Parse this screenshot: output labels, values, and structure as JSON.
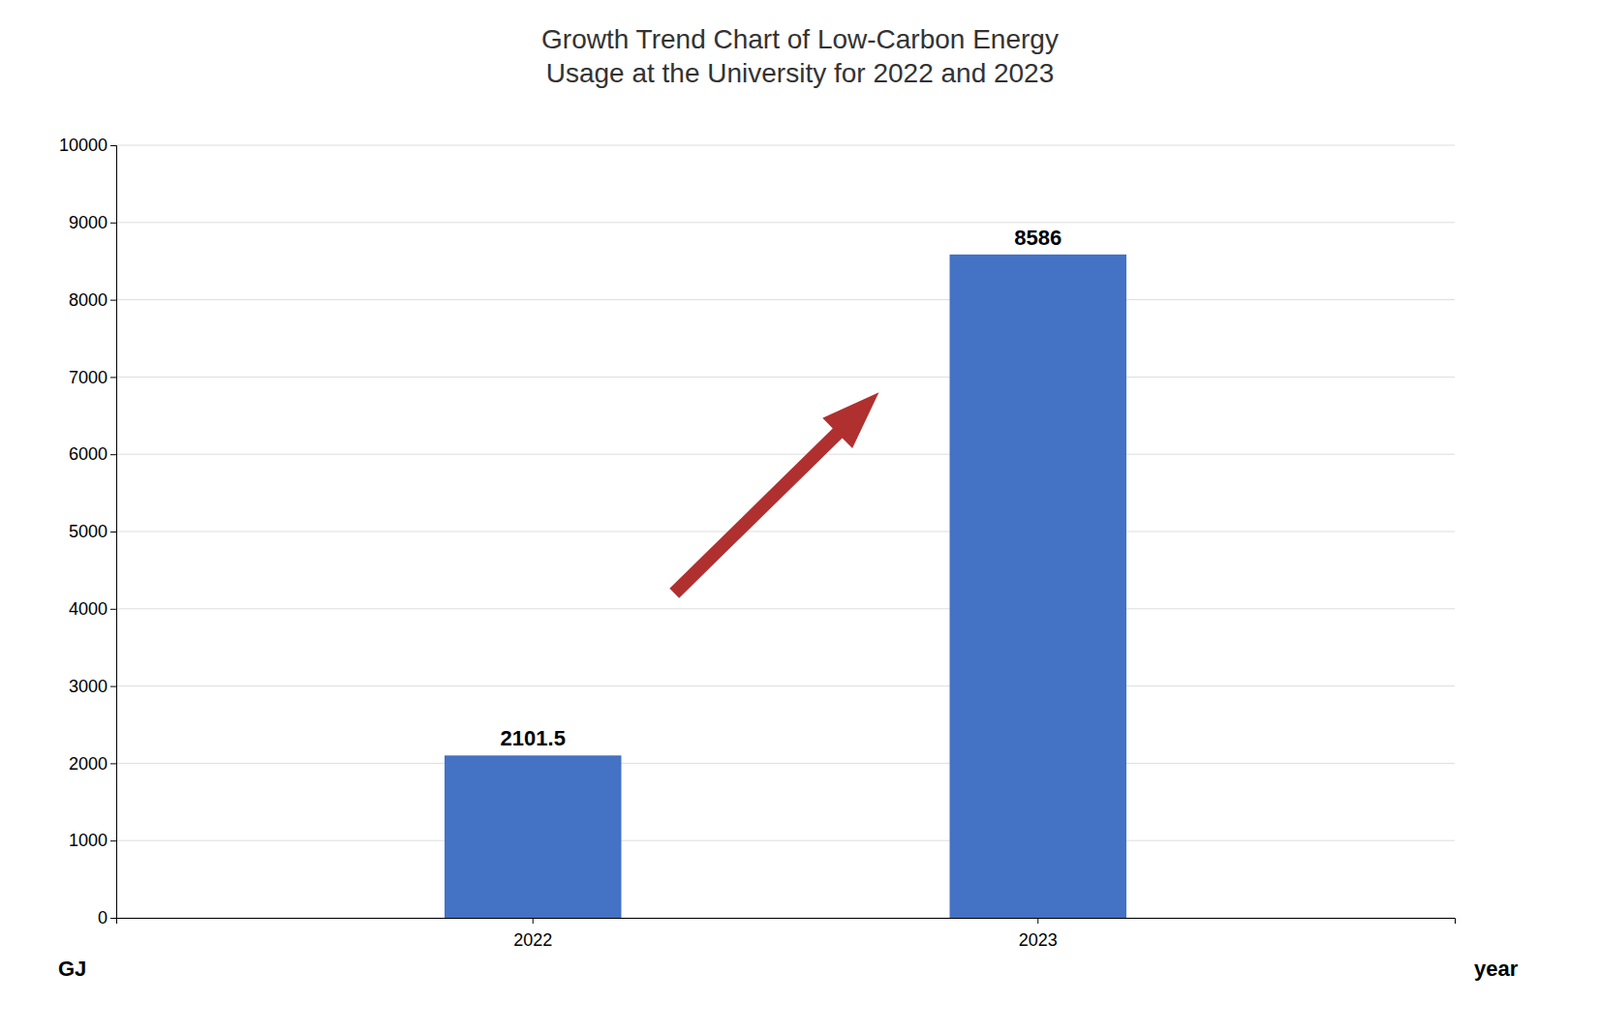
{
  "chart_data": {
    "type": "bar",
    "title": "Growth Trend Chart of Low-Carbon Energy\nUsage at the University for 2022 and 2023",
    "categories": [
      "2022",
      "2023"
    ],
    "values": [
      2101.5,
      8586
    ],
    "color": "#4472C4",
    "x_label": "year",
    "y_label": "GJ",
    "ylim": [
      0,
      10000
    ],
    "yticks": [
      0,
      1000,
      2000,
      3000,
      4000,
      5000,
      6000,
      7000,
      8000,
      9000,
      10000
    ],
    "grid": true,
    "data_labels": true
  }
}
